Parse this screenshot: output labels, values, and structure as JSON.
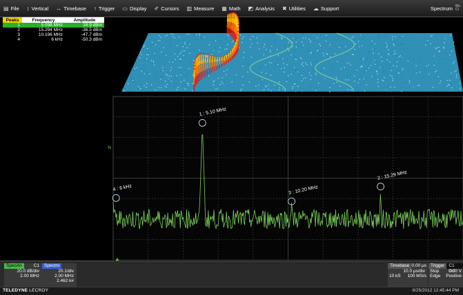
{
  "menu": {
    "items": [
      {
        "key": "file",
        "label": "File",
        "icon": "file-icon",
        "glyph": "▤"
      },
      {
        "key": "vertical",
        "label": "Vertical",
        "icon": "vertical-icon",
        "glyph": "↕"
      },
      {
        "key": "timebase",
        "label": "Timebase",
        "icon": "timebase-icon",
        "glyph": "↔"
      },
      {
        "key": "trigger",
        "label": "Trigger",
        "icon": "trigger-icon",
        "glyph": "↑"
      },
      {
        "key": "display",
        "label": "Display",
        "icon": "display-icon",
        "glyph": "▭"
      },
      {
        "key": "cursors",
        "label": "Cursors",
        "icon": "cursors-icon",
        "glyph": "✐"
      },
      {
        "key": "measure",
        "label": "Measure",
        "icon": "measure-icon",
        "glyph": "▥"
      },
      {
        "key": "math",
        "label": "Math",
        "icon": "math-icon",
        "glyph": "▦"
      },
      {
        "key": "analysis",
        "label": "Analysis",
        "icon": "analysis-icon",
        "glyph": "◩"
      },
      {
        "key": "utilities",
        "label": "Utilities",
        "icon": "utilities-icon",
        "glyph": "✖"
      },
      {
        "key": "support",
        "label": "Support",
        "icon": "support-icon",
        "glyph": "☁"
      }
    ],
    "mode": "Spectrum",
    "mode_mini": "Mu\nCi"
  },
  "peaks_table": {
    "headers": [
      "Peaks",
      "Frequency",
      "Amplitude"
    ],
    "rows": [
      {
        "n": "1",
        "freq": "5.098 MHz",
        "amp": "18.9 dBm",
        "selected": true
      },
      {
        "n": "2",
        "freq": "15.294 MHz",
        "amp": "-36.5 dBm",
        "selected": false
      },
      {
        "n": "3",
        "freq": "10.196 MHz",
        "amp": "-47.7 dBm",
        "selected": false
      },
      {
        "n": "4",
        "freq": "6 kHz",
        "amp": "-50.3 dBm",
        "selected": false
      }
    ]
  },
  "peak_labels": [
    {
      "text": "1 : 5.10 MHz",
      "freq_mhz": 5.1,
      "level": 0.83
    },
    {
      "text": "2 : 15.29 MHz",
      "freq_mhz": 15.29,
      "level": 0.44
    },
    {
      "text": "3 : 10.20 MHz",
      "freq_mhz": 10.2,
      "level": 0.35
    },
    {
      "text": "4 : 6 kHz",
      "freq_mhz": 0.006,
      "level": 0.37
    }
  ],
  "spectrum": {
    "span_mhz": [
      0,
      20
    ],
    "noise_level": 0.25,
    "trace_color": "#7ad35a",
    "grid_color": "#3a3a3a"
  },
  "spectrogram": {
    "floor_color": "#3aa9d6",
    "peak_colors": [
      "#ffd400",
      "#ff7a00",
      "#e02020"
    ]
  },
  "side_marker": "%",
  "bottom": {
    "specan": {
      "badge": "SpecAn",
      "channel": "C1",
      "line1": "20.0 dB/div",
      "line2": "2.00 MHz",
      "badge_color": "#4ab84a"
    },
    "spectro": {
      "badge": "Spectro",
      "line1": "20.1/div",
      "line2": "2.00 MHz",
      "line3": "2.462 k#",
      "badge_color": "#3c5ed6"
    },
    "timebase": {
      "badge": "Timebase",
      "col1": "0.00 µs",
      "line1": "10.0 µs/div",
      "line2a": "10 kS",
      "line2b": "100 MS/s"
    },
    "trigger": {
      "badge": "Trigger",
      "channel": "C1 DC",
      "line1a": "Stop",
      "line1b": "0.00 V",
      "line2a": "Edge",
      "line2b": "Positive"
    }
  },
  "status": {
    "brand_bold": "TELEDYNE",
    "brand_rest": " LECROY",
    "datetime": "9/25/2012 12:45:44 PM"
  }
}
